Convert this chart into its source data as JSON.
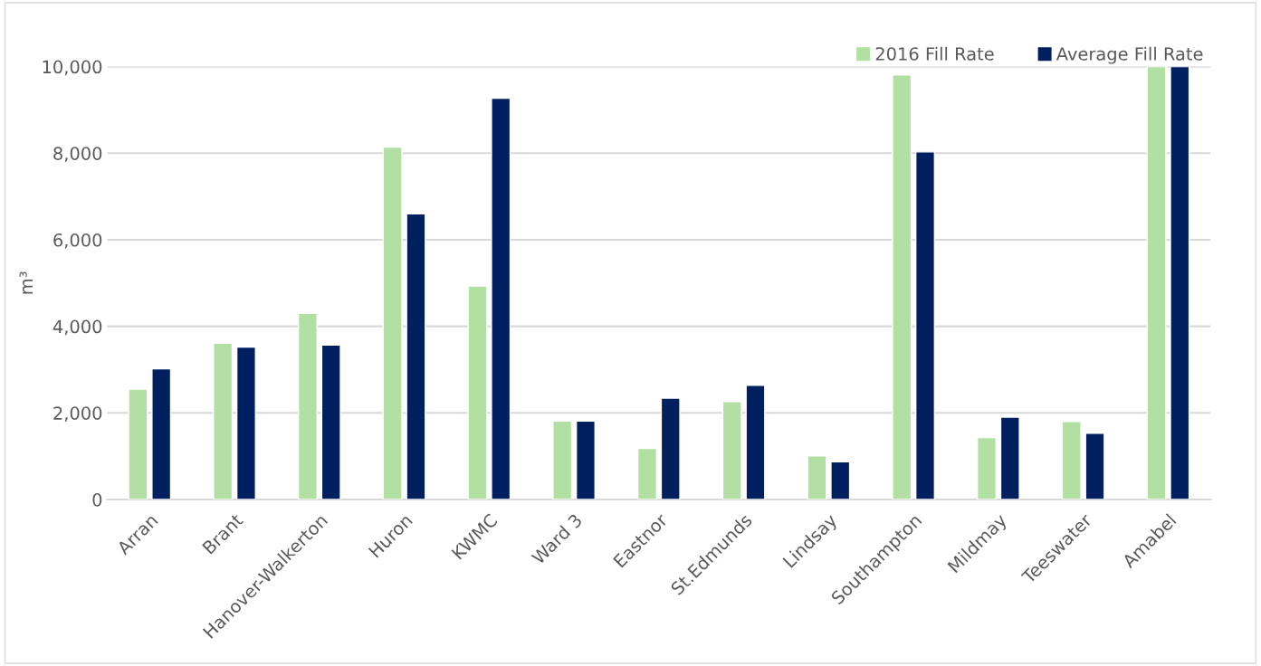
{
  "chart_data": {
    "type": "bar",
    "ylabel": "m³",
    "categories": [
      "Arran",
      "Brant",
      "Hanover-Walkerton",
      "Huron",
      "KWMC",
      "Ward 3",
      "Eastnor",
      "St.Edmunds",
      "Lindsay",
      "Southampton",
      "Mildmay",
      "Teeswater",
      "Amabel"
    ],
    "series": [
      {
        "name": "2016 Fill Rate",
        "color": "#b2dfa2",
        "values": [
          2550,
          3610,
          4300,
          8140,
          4930,
          1810,
          1180,
          2260,
          1010,
          9810,
          1430,
          1800,
          10000
        ]
      },
      {
        "name": "Average Fill Rate",
        "color": "#001f5f",
        "values": [
          3020,
          3520,
          3570,
          6600,
          9270,
          1810,
          2340,
          2640,
          870,
          8030,
          1900,
          1530,
          10000
        ]
      }
    ],
    "ylim": [
      0,
      10000
    ],
    "yticks": [
      {
        "value": 0,
        "label": "0"
      },
      {
        "value": 2000,
        "label": "2,000"
      },
      {
        "value": 4000,
        "label": "4,000"
      },
      {
        "value": 6000,
        "label": "6,000"
      },
      {
        "value": 8000,
        "label": "8,000"
      },
      {
        "value": 10000,
        "label": "10,000"
      }
    ],
    "grid": "y",
    "legend": "top right"
  }
}
